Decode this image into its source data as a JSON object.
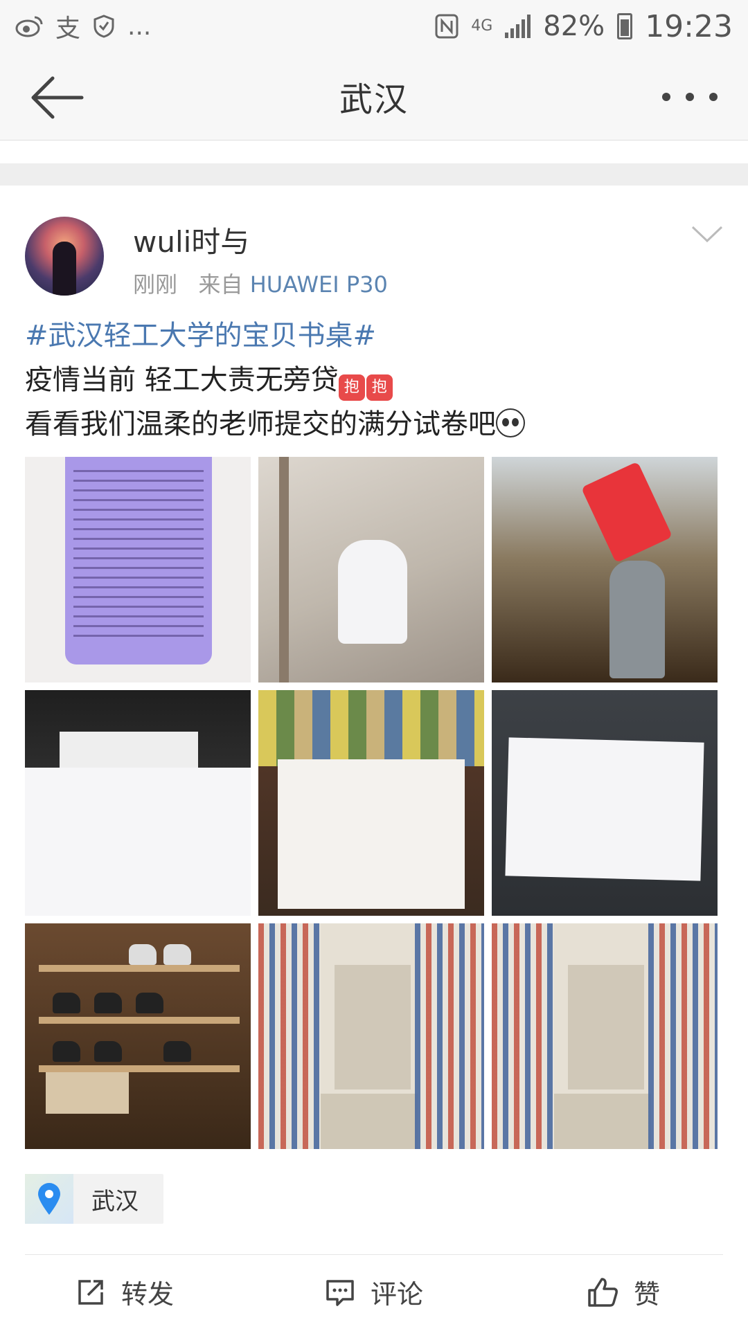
{
  "status_bar": {
    "left_icons": [
      "weibo-icon",
      "alipay-icon",
      "shield-icon",
      "more-dots"
    ],
    "alipay_glyph": "支",
    "more": "...",
    "network": "4G",
    "battery": "82%",
    "time": "19:23"
  },
  "nav": {
    "title": "武汉"
  },
  "post": {
    "username": "wuli时与",
    "time": "刚刚",
    "source_prefix": "来自",
    "device": "HUAWEI P30",
    "hashtag": "#武汉轻工大学的宝贝书桌#",
    "line1": "疫情当前 轻工大责无旁贷",
    "line2": "看看我们温柔的老师提交的满分试卷吧",
    "emoji_hug_text": "抱"
  },
  "location": {
    "label": "武汉"
  },
  "actions": {
    "repost": "转发",
    "comment": "评论",
    "like": "赞"
  },
  "colors": {
    "link_blue": "#4a78b0",
    "meta_gray": "#999999",
    "nav_bg": "#f7f7f7"
  }
}
